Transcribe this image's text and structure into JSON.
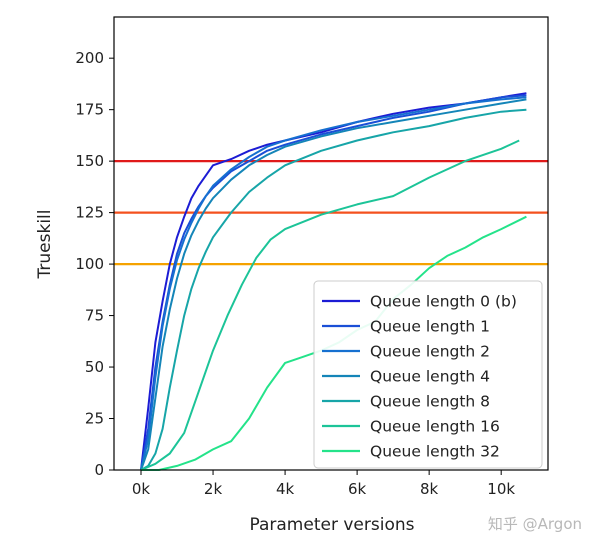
{
  "chart_data": {
    "type": "line",
    "xlabel": "Parameter versions",
    "ylabel": "Trueskill",
    "xlim": [
      -750,
      11300
    ],
    "ylim": [
      0,
      220
    ],
    "xticks": [
      0,
      2000,
      4000,
      6000,
      8000,
      10000
    ],
    "xtick_labels": [
      "0k",
      "2k",
      "4k",
      "6k",
      "8k",
      "10k"
    ],
    "yticks": [
      0,
      25,
      50,
      75,
      100,
      125,
      150,
      175,
      200
    ],
    "ytick_labels": [
      "0",
      "25",
      "50",
      "75",
      "100",
      "125",
      "150",
      "175",
      "200"
    ],
    "grid": false,
    "legend_position": "lower-right",
    "hlines": [
      {
        "y": 150,
        "color": "#e01a1a"
      },
      {
        "y": 125,
        "color": "#f4511e"
      },
      {
        "y": 100,
        "color": "#f5a200"
      }
    ],
    "series": [
      {
        "name": "Queue length 0 (b)",
        "color": "#1c1cd4",
        "x": [
          0,
          200,
          400,
          600,
          800,
          1000,
          1200,
          1400,
          1600,
          1800,
          2000,
          2500,
          3000,
          3500,
          4000,
          5000,
          6000,
          7000,
          8000,
          9000,
          10000,
          10700
        ],
        "y": [
          0,
          30,
          62,
          82,
          100,
          113,
          123,
          132,
          138,
          143,
          148,
          151,
          155,
          158,
          160,
          164,
          169,
          173,
          176,
          178,
          181,
          183
        ]
      },
      {
        "name": "Queue length 1",
        "color": "#1a4fd6",
        "x": [
          0,
          200,
          400,
          600,
          800,
          1000,
          1200,
          1400,
          1600,
          1800,
          2000,
          2500,
          3000,
          3500,
          4000,
          5000,
          6000,
          7000,
          8000,
          9000,
          10000,
          10700
        ],
        "y": [
          0,
          20,
          50,
          72,
          90,
          105,
          115,
          122,
          128,
          133,
          137,
          145,
          150,
          155,
          158,
          163,
          167,
          171,
          174,
          178,
          181,
          182
        ]
      },
      {
        "name": "Queue length 2",
        "color": "#1670d0",
        "x": [
          0,
          200,
          400,
          600,
          800,
          1000,
          1200,
          1400,
          1600,
          1800,
          2000,
          2500,
          3000,
          3500,
          4000,
          5000,
          6000,
          7000,
          8000,
          9000,
          10000,
          10700
        ],
        "y": [
          0,
          15,
          45,
          70,
          88,
          102,
          112,
          120,
          127,
          133,
          138,
          146,
          152,
          157,
          160,
          165,
          169,
          172,
          175,
          178,
          180,
          181
        ]
      },
      {
        "name": "Queue length 4",
        "color": "#1485b8",
        "x": [
          0,
          200,
          400,
          600,
          800,
          1000,
          1200,
          1400,
          1600,
          1800,
          2000,
          2500,
          3000,
          3500,
          4000,
          5000,
          6000,
          7000,
          8000,
          9000,
          10000,
          10700
        ],
        "y": [
          0,
          10,
          35,
          60,
          78,
          93,
          105,
          114,
          121,
          127,
          132,
          141,
          148,
          153,
          157,
          162,
          166,
          169,
          172,
          175,
          178,
          180
        ]
      },
      {
        "name": "Queue length 8",
        "color": "#17a5a8",
        "x": [
          0,
          200,
          400,
          600,
          800,
          1000,
          1200,
          1400,
          1600,
          1800,
          2000,
          2500,
          3000,
          3500,
          4000,
          5000,
          6000,
          7000,
          8000,
          9000,
          10000,
          10700
        ],
        "y": [
          0,
          2,
          8,
          20,
          40,
          58,
          75,
          88,
          98,
          106,
          113,
          125,
          135,
          142,
          148,
          155,
          160,
          164,
          167,
          171,
          174,
          175
        ]
      },
      {
        "name": "Queue length 16",
        "color": "#1cc498",
        "x": [
          0,
          400,
          800,
          1200,
          1600,
          2000,
          2400,
          2800,
          3200,
          3600,
          4000,
          5000,
          6000,
          7000,
          8000,
          9000,
          10000,
          10500
        ],
        "y": [
          0,
          3,
          8,
          18,
          38,
          58,
          75,
          90,
          103,
          112,
          117,
          124,
          129,
          133,
          142,
          150,
          156,
          160
        ]
      },
      {
        "name": "Queue length 32",
        "color": "#24e38a",
        "x": [
          0,
          500,
          1000,
          1500,
          2000,
          2500,
          3000,
          3500,
          4000,
          4500,
          5000,
          5500,
          6000,
          6500,
          7000,
          7500,
          8000,
          8500,
          9000,
          9500,
          10000,
          10700
        ],
        "y": [
          0,
          0,
          2,
          5,
          10,
          14,
          25,
          40,
          52,
          55,
          58,
          62,
          68,
          72,
          83,
          90,
          98,
          104,
          108,
          113,
          117,
          123
        ]
      }
    ]
  },
  "watermark": "知乎 @Argon"
}
